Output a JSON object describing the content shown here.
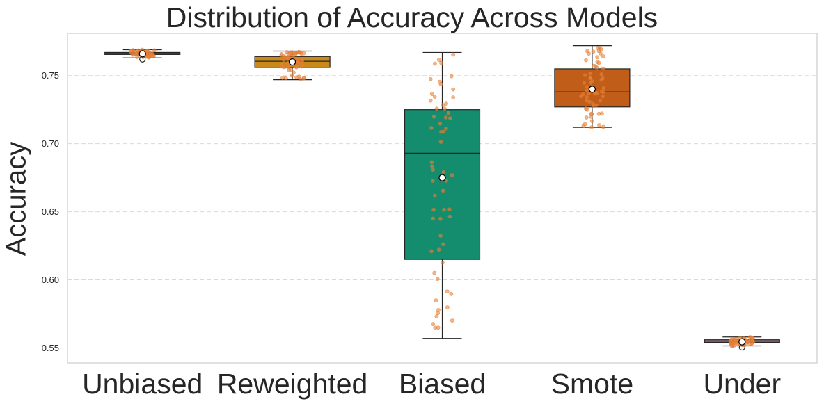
{
  "chart_data": {
    "type": "box",
    "title": "Distribution of Accuracy Across Models",
    "xlabel": "",
    "ylabel": "Accuracy",
    "ylim": [
      0.539,
      0.781
    ],
    "yticks": [
      0.55,
      0.6,
      0.65,
      0.7,
      0.75
    ],
    "ytick_labels": [
      "0.55",
      "0.60",
      "0.65",
      "0.70",
      "0.75"
    ],
    "grid": "horizontal-dashed",
    "categories": [
      "Unbiased",
      "Reweighted",
      "Biased",
      "Smote",
      "Under"
    ],
    "boxes": [
      {
        "name": "Unbiased",
        "color": "#1f4e79",
        "whisker_low": 0.763,
        "q1": 0.7655,
        "median": 0.766,
        "q3": 0.767,
        "whisker_high": 0.769,
        "mean": 0.766,
        "outliers": [
          0.762
        ]
      },
      {
        "name": "Reweighted",
        "color": "#c98a1b",
        "whisker_low": 0.747,
        "q1": 0.756,
        "median": 0.7605,
        "q3": 0.764,
        "whisker_high": 0.768,
        "mean": 0.76,
        "outliers": []
      },
      {
        "name": "Biased",
        "color": "#138d6e",
        "whisker_low": 0.557,
        "q1": 0.615,
        "median": 0.693,
        "q3": 0.725,
        "whisker_high": 0.767,
        "mean": 0.675,
        "outliers": []
      },
      {
        "name": "Smote",
        "color": "#c05d19",
        "whisker_low": 0.712,
        "q1": 0.727,
        "median": 0.738,
        "q3": 0.755,
        "whisker_high": 0.772,
        "mean": 0.74,
        "outliers": []
      },
      {
        "name": "Under",
        "color": "#8e6a78",
        "whisker_low": 0.5515,
        "q1": 0.554,
        "median": 0.555,
        "q3": 0.556,
        "whisker_high": 0.558,
        "mean": 0.5545,
        "outliers": [
          0.5505
        ]
      }
    ],
    "points_color": "#e8833a",
    "points_per_box": 60
  }
}
